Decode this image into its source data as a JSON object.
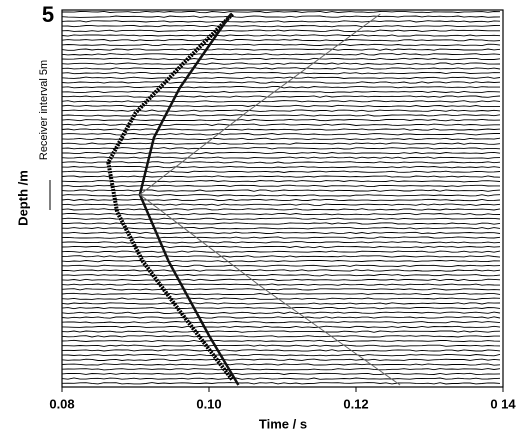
{
  "chart_data": {
    "type": "line",
    "xlabel": "Time / s",
    "ylabel": "Depth /m",
    "annotation": "Receiver interval 5m",
    "xlim": [
      0.08,
      0.14
    ],
    "xticks": [
      {
        "value": 0.08,
        "label": "0.08"
      },
      {
        "value": 0.1,
        "label": "0.10"
      },
      {
        "value": 0.12,
        "label": "0.12"
      },
      {
        "value": 0.14,
        "label": "0 14"
      }
    ],
    "ylim": [
      5,
      80
    ],
    "yticks": [
      5
    ],
    "y_reversed": true,
    "series": [
      {
        "color": "#000000",
        "width": 4,
        "x": [
          0.1032,
          0.0965,
          0.09,
          0.0863,
          0.0875,
          0.091,
          0.096,
          0.1032
        ],
        "y": [
          5,
          15,
          25,
          35,
          45,
          55,
          65,
          79
        ]
      },
      {
        "color": "#111111",
        "width": 2.5,
        "x": [
          0.103,
          0.096,
          0.0925,
          0.0906,
          0.0945,
          0.1,
          0.104
        ],
        "y": [
          5,
          20,
          30,
          41.5,
          55,
          70,
          80
        ]
      },
      {
        "color": "#666666",
        "width": 1,
        "x": [
          0.1233,
          0.105,
          0.0906,
          0.107,
          0.126
        ],
        "y": [
          5,
          25,
          41.5,
          60,
          80
        ]
      }
    ]
  }
}
